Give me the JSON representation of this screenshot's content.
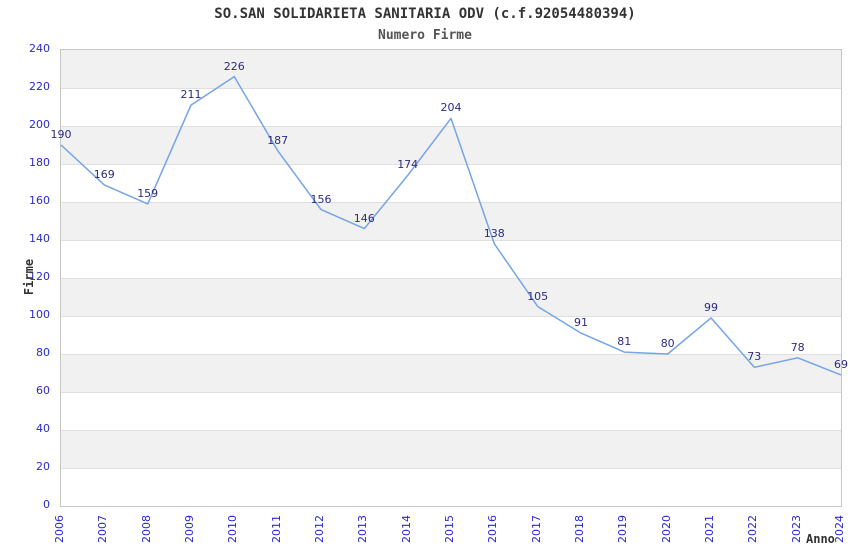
{
  "chart_data": {
    "type": "line",
    "title": "SO.SAN SOLIDARIETA SANITARIA ODV (c.f.92054480394)",
    "subtitle": "Numero Firme",
    "xlabel": "Anno",
    "ylabel": "Firme",
    "categories": [
      "2006",
      "2007",
      "2008",
      "2009",
      "2010",
      "2011",
      "2012",
      "2013",
      "2014",
      "2015",
      "2016",
      "2017",
      "2018",
      "2019",
      "2020",
      "2021",
      "2022",
      "2023",
      "2024"
    ],
    "values": [
      190,
      169,
      159,
      211,
      226,
      187,
      156,
      146,
      174,
      204,
      138,
      105,
      91,
      81,
      80,
      99,
      73,
      78,
      69
    ],
    "ylim": [
      0,
      240
    ],
    "ytick_step": 20,
    "yticks": [
      0,
      20,
      40,
      60,
      80,
      100,
      120,
      140,
      160,
      180,
      200,
      220,
      240
    ],
    "grid": "horizontal-stripes",
    "legend": "none",
    "data_labels_shown": true,
    "colors": {
      "line": "#74a4e6",
      "point_label": "#2b2b82",
      "tick_label": "#2a2acc",
      "title": "#333333",
      "subtitle": "#555555",
      "axis_title": "#333333",
      "stripe": "#f1f1f1",
      "gridline": "#e0e0e0",
      "plot_border": "#c6c6c6",
      "background": "#ffffff"
    }
  }
}
